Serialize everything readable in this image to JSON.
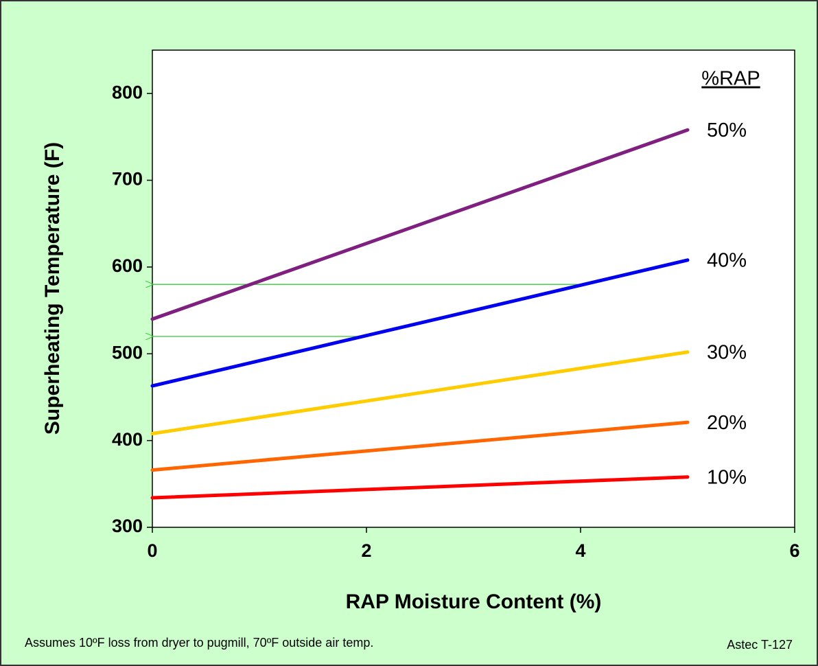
{
  "chart_data": {
    "type": "line",
    "x_label": "RAP Moisture Content (%)",
    "y_label": "Superheating Temperature (F)",
    "legend_title": "%RAP",
    "footnote": "Assumes 10ºF loss from dryer to pugmill, 70ºF outside air temp.",
    "source": "Astec T-127",
    "x": [
      0,
      5
    ],
    "series": [
      {
        "name": "50%",
        "color": "#7f1f7f",
        "values": [
          540,
          758
        ]
      },
      {
        "name": "40%",
        "color": "#0000ee",
        "values": [
          463,
          608
        ]
      },
      {
        "name": "30%",
        "color": "#ffcc00",
        "values": [
          408,
          502
        ]
      },
      {
        "name": "20%",
        "color": "#ff6600",
        "values": [
          366,
          421
        ]
      },
      {
        "name": "10%",
        "color": "#ff0000",
        "values": [
          334,
          358
        ]
      }
    ],
    "arrows": [
      {
        "color": "#33cc33",
        "from": [
          4,
          580
        ],
        "to": [
          0,
          580
        ]
      },
      {
        "color": "#33cc33",
        "from": [
          2,
          520
        ],
        "to": [
          0,
          520
        ]
      }
    ],
    "xlim": [
      0,
      6
    ],
    "xticks": [
      0,
      2,
      4,
      6
    ],
    "ylim": [
      300,
      850
    ],
    "yticks": [
      300,
      400,
      500,
      600,
      700,
      800
    ]
  }
}
